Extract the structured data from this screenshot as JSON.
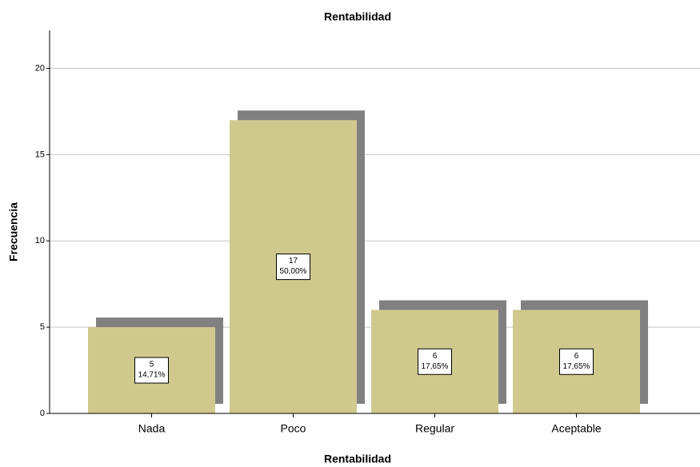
{
  "chart_data": {
    "type": "bar",
    "title": "Rentabilidad",
    "x_label": "Rentabilidad",
    "y_label": "Frecuencia",
    "categories": [
      "Nada",
      "Poco",
      "Regular",
      "Aceptable"
    ],
    "values": [
      5,
      17,
      6,
      6
    ],
    "percentages": [
      14.71,
      50.0,
      17.65,
      17.65
    ],
    "percentage_labels": [
      "14,71%",
      "50,00%",
      "17,65%",
      "17,65%"
    ],
    "color": "#d0c98e",
    "shadow_color": "#808080",
    "ylim": [
      0,
      22.2
    ],
    "yticks": [
      0,
      5,
      10,
      15,
      20
    ],
    "grid": true
  }
}
